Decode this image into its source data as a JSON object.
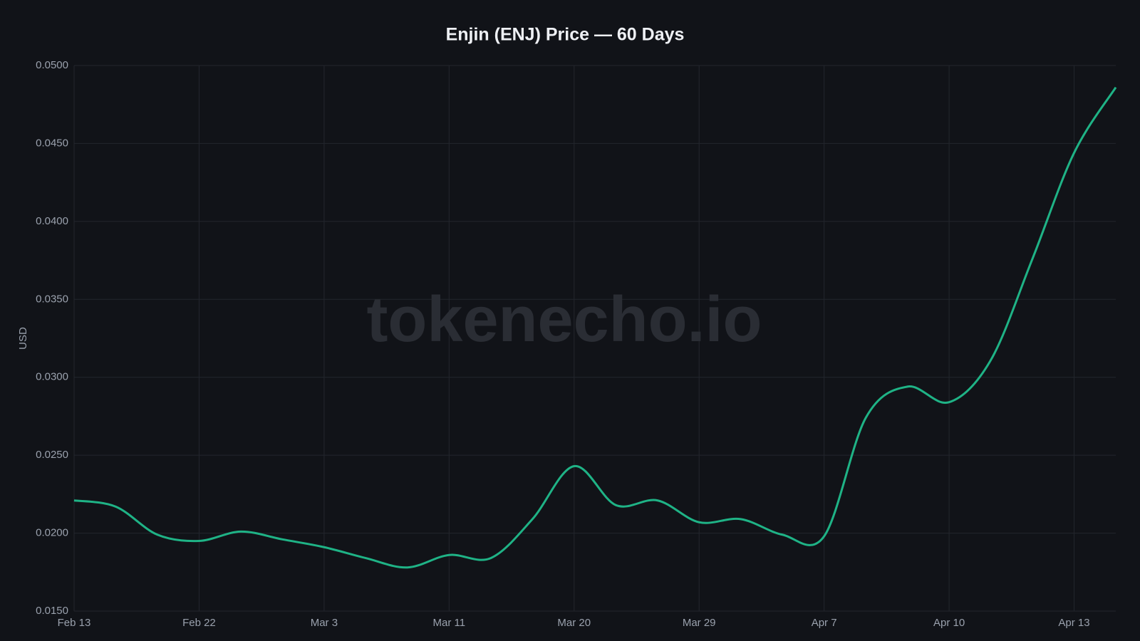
{
  "chart_data": {
    "type": "line",
    "title": "Enjin (ENJ) Price — 60 Days",
    "y_label": "USD",
    "watermark": "tokenecho.io",
    "categories": [
      "Feb 13",
      null,
      null,
      "Feb 22",
      null,
      null,
      "Mar 3",
      null,
      null,
      "Mar 11",
      null,
      null,
      "Mar 20",
      null,
      null,
      "Mar 29",
      null,
      null,
      "Apr 7",
      null,
      null,
      "Apr 10",
      null,
      null,
      "Apr 13",
      null
    ],
    "series": [
      {
        "name": "ENJ",
        "color": "#1fb386",
        "values": [
          0.0221,
          0.0217,
          0.0199,
          0.0195,
          0.0201,
          0.0196,
          0.0191,
          0.0184,
          0.0178,
          0.0186,
          0.0184,
          0.0209,
          0.0243,
          0.0218,
          0.0221,
          0.0207,
          0.0209,
          0.0199,
          0.0198,
          0.0274,
          0.0294,
          0.0284,
          0.0311,
          0.0376,
          0.0444,
          0.0486
        ]
      }
    ],
    "ylim": [
      0.015,
      0.05
    ],
    "yticks": [
      {
        "value": 0.015,
        "label": "0.0150"
      },
      {
        "value": 0.02,
        "label": "0.0200"
      },
      {
        "value": 0.025,
        "label": "0.0250"
      },
      {
        "value": 0.03,
        "label": "0.0300"
      },
      {
        "value": 0.035,
        "label": "0.0350"
      },
      {
        "value": 0.04,
        "label": "0.0400"
      },
      {
        "value": 0.045,
        "label": "0.0450"
      },
      {
        "value": 0.05,
        "label": "0.0500"
      }
    ],
    "grid": true
  }
}
